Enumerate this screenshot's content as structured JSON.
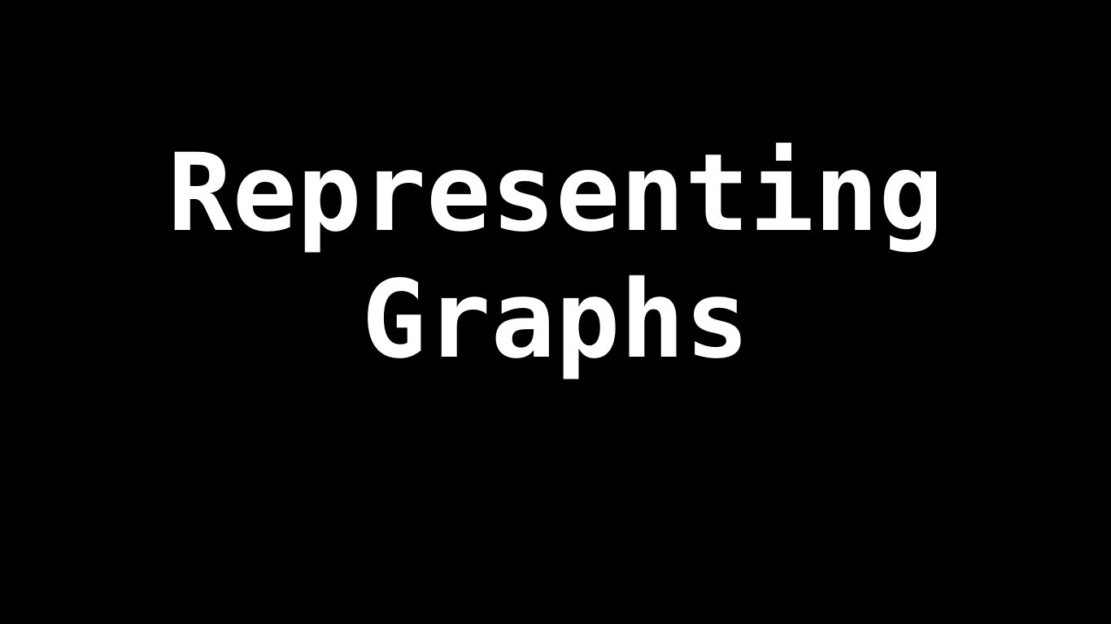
{
  "slide": {
    "title_lines": [
      "Representing",
      "Graphs"
    ],
    "colors": {
      "background": "#000000",
      "text": "#ffffff"
    }
  }
}
